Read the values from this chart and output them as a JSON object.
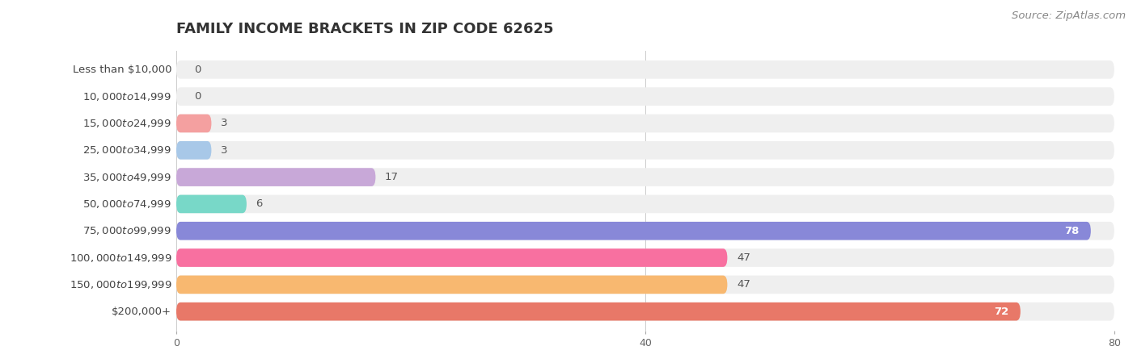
{
  "title": "FAMILY INCOME BRACKETS IN ZIP CODE 62625",
  "source": "Source: ZipAtlas.com",
  "categories": [
    "Less than $10,000",
    "$10,000 to $14,999",
    "$15,000 to $24,999",
    "$25,000 to $34,999",
    "$35,000 to $49,999",
    "$50,000 to $74,999",
    "$75,000 to $99,999",
    "$100,000 to $149,999",
    "$150,000 to $199,999",
    "$200,000+"
  ],
  "values": [
    0,
    0,
    3,
    3,
    17,
    6,
    78,
    47,
    47,
    72
  ],
  "bar_colors": [
    "#F4A0B0",
    "#F5C490",
    "#F4A0A0",
    "#A8C8E8",
    "#C8A8D8",
    "#78D8C8",
    "#8888D8",
    "#F870A0",
    "#F8B870",
    "#E87868"
  ],
  "bar_bg_color": "#EFEFEF",
  "xlim": [
    0,
    80
  ],
  "xticks": [
    0,
    40,
    80
  ],
  "background_color": "#FFFFFF",
  "title_fontsize": 13,
  "label_fontsize": 9.5,
  "value_fontsize": 9.5,
  "source_fontsize": 9.5
}
